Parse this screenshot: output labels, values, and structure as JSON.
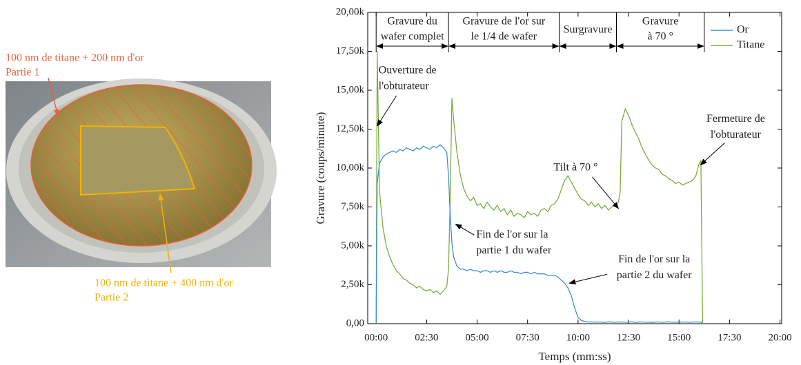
{
  "photo": {
    "labels": [
      {
        "lines": [
          "100 nm de titane + 200 nm d'or",
          "Partie 1"
        ],
        "color": "#e8603c"
      },
      {
        "lines": [
          "100 nm de titane + 400 nm d'or",
          "Partie 2"
        ],
        "color": "#f0b400"
      }
    ]
  },
  "chart_data": {
    "type": "line",
    "x_label": "Temps (mm:ss)",
    "y_label": "Gravure (coups/minute)",
    "xlim": [
      -25,
      1205
    ],
    "ylim": [
      0,
      20000
    ],
    "xticks": [
      {
        "value": 0,
        "label": "00:00"
      },
      {
        "value": 150,
        "label": "02:30"
      },
      {
        "value": 300,
        "label": "05:00"
      },
      {
        "value": 450,
        "label": "07:30"
      },
      {
        "value": 600,
        "label": "10:00"
      },
      {
        "value": 750,
        "label": "12:30"
      },
      {
        "value": 900,
        "label": "15:00"
      },
      {
        "value": 1050,
        "label": "17:30"
      },
      {
        "value": 1200,
        "label": "20:00"
      }
    ],
    "yticks": [
      {
        "value": 0,
        "label": "0,00"
      },
      {
        "value": 2500,
        "label": "2,50k"
      },
      {
        "value": 5000,
        "label": "5,00k"
      },
      {
        "value": 7500,
        "label": "7,50k"
      },
      {
        "value": 10000,
        "label": "10,00k"
      },
      {
        "value": 12500,
        "label": "12,50k"
      },
      {
        "value": 15000,
        "label": "15,00k"
      },
      {
        "value": 17500,
        "label": "17,50k"
      },
      {
        "value": 20000,
        "label": "20,00k"
      }
    ],
    "legend": "upper right",
    "x": [
      0,
      3,
      10,
      20,
      30,
      40,
      50,
      60,
      70,
      80,
      90,
      100,
      110,
      120,
      130,
      140,
      150,
      160,
      170,
      180,
      190,
      200,
      210,
      215,
      220,
      225,
      230,
      240,
      250,
      260,
      270,
      280,
      290,
      300,
      310,
      320,
      330,
      340,
      350,
      360,
      370,
      380,
      390,
      400,
      410,
      420,
      430,
      440,
      450,
      460,
      470,
      480,
      490,
      500,
      510,
      520,
      530,
      540,
      550,
      560,
      570,
      580,
      590,
      600,
      610,
      620,
      630,
      640,
      650,
      660,
      670,
      680,
      690,
      700,
      710,
      720,
      725,
      730,
      740,
      750,
      760,
      770,
      780,
      790,
      800,
      810,
      820,
      830,
      840,
      850,
      860,
      870,
      880,
      890,
      900,
      910,
      920,
      930,
      940,
      950,
      960,
      965,
      970
    ],
    "series": [
      {
        "name": "Or",
        "color": "#3b8fd4",
        "values": [
          0,
          9000,
          10300,
          10700,
          10900,
          11000,
          11100,
          11000,
          11200,
          11100,
          11300,
          11200,
          11100,
          11300,
          11200,
          11400,
          11300,
          11200,
          11400,
          11300,
          11500,
          11300,
          11000,
          9500,
          7000,
          5200,
          4300,
          3700,
          3500,
          3500,
          3400,
          3500,
          3400,
          3400,
          3300,
          3400,
          3400,
          3300,
          3400,
          3300,
          3400,
          3300,
          3300,
          3400,
          3300,
          3300,
          3200,
          3300,
          3300,
          3200,
          3300,
          3200,
          3200,
          3200,
          3100,
          3100,
          3100,
          3000,
          2800,
          2600,
          2300,
          1800,
          1000,
          400,
          200,
          150,
          100,
          120,
          90,
          110,
          100,
          80,
          120,
          100,
          90,
          110,
          100,
          110,
          90,
          100,
          120,
          80,
          100,
          110,
          90,
          100,
          80,
          100,
          110,
          90,
          100,
          120,
          90,
          100,
          80,
          110,
          100,
          90,
          100,
          110,
          100,
          100,
          0
        ]
      },
      {
        "name": "Titane",
        "color": "#78ad3e",
        "values": [
          0,
          17500,
          8500,
          6200,
          5000,
          4300,
          3800,
          3400,
          3200,
          2900,
          2800,
          2600,
          2500,
          2300,
          2400,
          2200,
          2100,
          2200,
          2000,
          2100,
          1900,
          2100,
          2400,
          3500,
          8000,
          14500,
          13200,
          11000,
          9600,
          8700,
          8200,
          7900,
          8100,
          7600,
          7700,
          7400,
          7800,
          7500,
          7300,
          7600,
          7200,
          7400,
          7000,
          7300,
          6900,
          7100,
          7000,
          6800,
          7200,
          7000,
          7100,
          6900,
          7300,
          7400,
          7200,
          7600,
          7700,
          8000,
          8600,
          9200,
          9500,
          9100,
          8700,
          8300,
          8000,
          7900,
          7600,
          7800,
          7500,
          7700,
          7400,
          7600,
          7300,
          7500,
          7600,
          7800,
          8500,
          13000,
          13800,
          13400,
          12800,
          12300,
          11900,
          11300,
          10900,
          10500,
          10200,
          10000,
          9900,
          9600,
          9500,
          9300,
          9200,
          9000,
          9100,
          8900,
          9000,
          9100,
          9200,
          9500,
          10300,
          10500,
          0
        ]
      }
    ],
    "phases": [
      {
        "label": [
          "Gravure du",
          "wafer complet"
        ],
        "start": 0,
        "end": 215
      },
      {
        "label": [
          "Gravure de l'or sur",
          "le 1/4 de wafer"
        ],
        "start": 215,
        "end": 544
      },
      {
        "label": [
          "Surgravure"
        ],
        "start": 544,
        "end": 714
      },
      {
        "label": [
          "Gravure",
          "à 70 °"
        ],
        "start": 714,
        "end": 975
      }
    ],
    "annotations": [
      {
        "text": [
          "Ouverture de",
          "l'obturateur"
        ],
        "x": 3,
        "y": 12700
      },
      {
        "text": [
          "Fin de l'or sur la",
          "partie 1 du wafer"
        ],
        "x": 236,
        "y": 6400
      },
      {
        "text": [
          "Fin de l'or sur la",
          "partie 2 du wafer"
        ],
        "x": 574,
        "y": 2600
      },
      {
        "text": [
          "Tilt à 70 °"
        ],
        "x": 720,
        "y": 7400
      },
      {
        "text": [
          "Fermeture de",
          "l'obturateur"
        ],
        "x": 964,
        "y": 10200
      }
    ]
  }
}
